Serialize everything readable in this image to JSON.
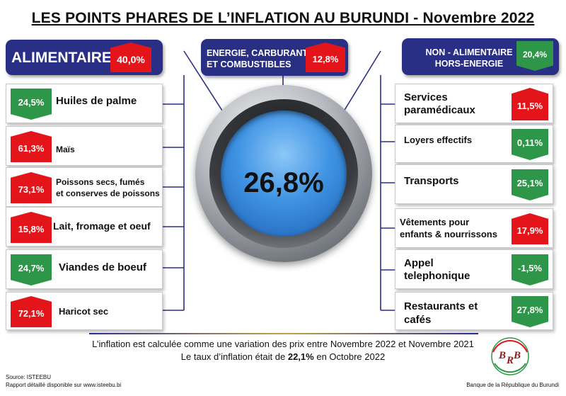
{
  "title": "LES POINTS PHARES DE L’INFLATION AU BURUNDI - Novembre 2022",
  "center_value": "26,8%",
  "headers": {
    "alimentaire": {
      "label": "ALIMENTAIRE",
      "value": "40,0%"
    },
    "energie": {
      "label_line1": "ENERGIE,  CARBURANT",
      "label_line2": "ET COMBUSTIBLES",
      "value": "12,8%"
    },
    "non_alimentaire": {
      "label_line1": "NON - ALIMENTAIRE",
      "label_line2": "HORS-ENERGIE",
      "value": "20,4%"
    }
  },
  "left_items": [
    {
      "label": "Huiles de palme",
      "value": "24,5%",
      "trend": "down"
    },
    {
      "label": "Maïs",
      "value": "61,3%",
      "trend": "up"
    },
    {
      "label_line1": "Poissons secs, fumés",
      "label_line2": "et conserves de poissons",
      "value": "73,1%",
      "trend": "up"
    },
    {
      "label": "Lait, fromage et oeuf",
      "value": "15,8%",
      "trend": "up"
    },
    {
      "label": "Viandes de boeuf",
      "value": "24,7%",
      "trend": "down"
    },
    {
      "label": "Haricot sec",
      "value": "72,1%",
      "trend": "up"
    }
  ],
  "right_items": [
    {
      "label_line1": "Services",
      "label_line2": "paramédicaux",
      "value": "11,5%",
      "trend": "up"
    },
    {
      "label": "Loyers effectifs",
      "value": "0,11%",
      "trend": "down"
    },
    {
      "label": "Transports",
      "value": "25,1%",
      "trend": "down"
    },
    {
      "label_line1": "Vêtements pour",
      "label_line2": "enfants & nourrissons",
      "value": "17,9%",
      "trend": "up"
    },
    {
      "label_line1": "Appel",
      "label_line2": "telephonique",
      "value": "-1,5%",
      "trend": "down"
    },
    {
      "label_line1": "Restaurants et",
      "label_line2": "cafés",
      "value": "27,8%",
      "trend": "down"
    }
  ],
  "footnote": {
    "line1": "L’inflation est calculée comme une variation des prix entre Novembre 2022 et Novembre 2021",
    "line2_prefix": "Le taux d’inflation était de",
    "line2_value": "22,1%",
    "line2_suffix": "en Octobre 2022"
  },
  "source": {
    "line1": "Source: ISTEEBU",
    "line2": "Rapport détaillé disponible sur www.isteebu.bi"
  },
  "bank_name": "Banque de la République du Burundi",
  "logo_text": "BRB",
  "colors": {
    "navy": "#2a2f86",
    "red": "#e3151a",
    "green": "#2e9648"
  }
}
